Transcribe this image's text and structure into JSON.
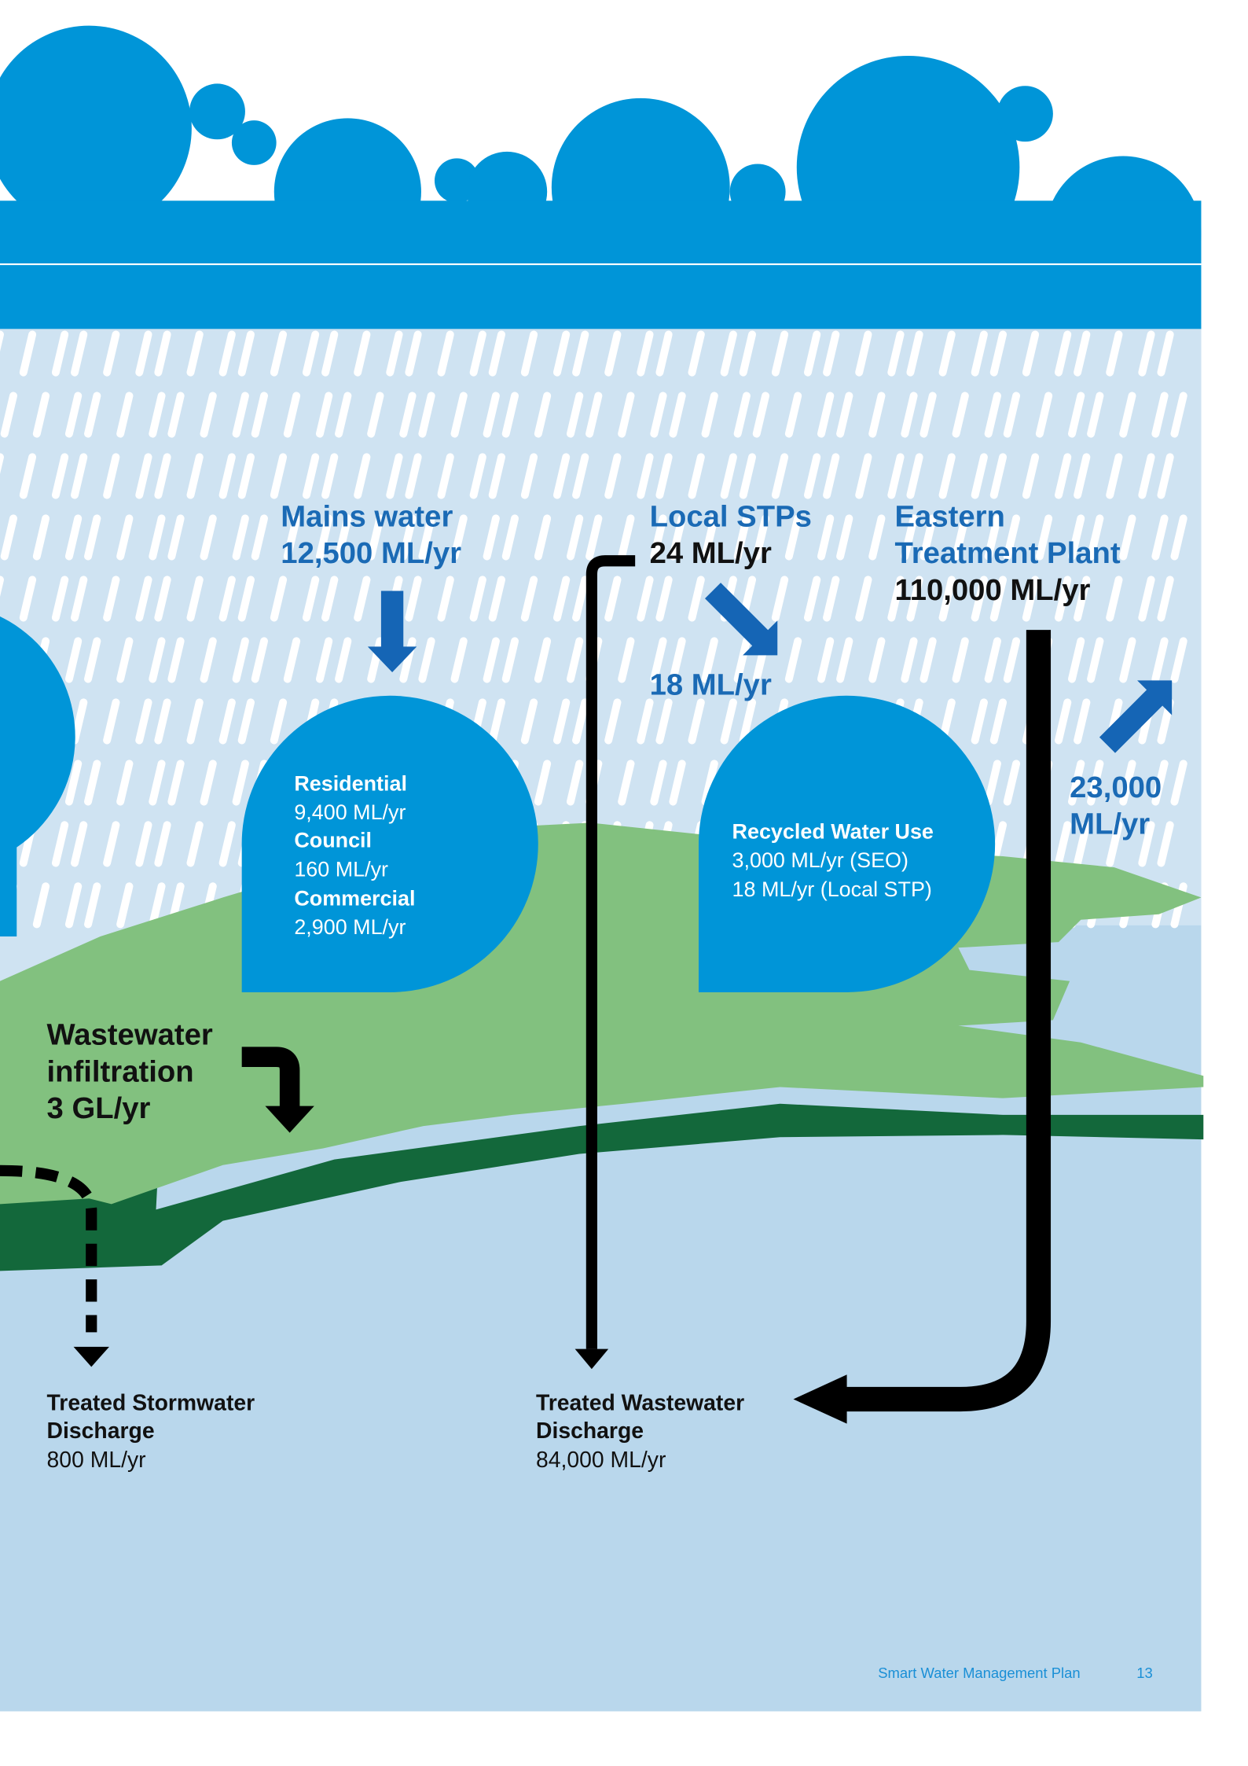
{
  "mains": {
    "title": "Mains water",
    "value": "12,500 ML/yr"
  },
  "local_stps": {
    "title": "Local STPs",
    "value": "24 ML/yr",
    "recycled": "18 ML/yr"
  },
  "eastern": {
    "title_lines": [
      "Eastern",
      "Treatment Plant"
    ],
    "value": "110,000 ML/yr",
    "outflow_lines": [
      "23,000",
      "ML/yr"
    ]
  },
  "demand": {
    "items": [
      {
        "label": "Residential",
        "value": "9,400 ML/yr"
      },
      {
        "label": "Council",
        "value": "160 ML/yr"
      },
      {
        "label": "Commercial",
        "value": "2,900 ML/yr"
      }
    ]
  },
  "recycled_use": {
    "title": "Recycled Water Use",
    "lines": [
      "3,000 ML/yr (SEO)",
      "18 ML/yr (Local STP)"
    ]
  },
  "infiltration": {
    "lines": [
      "Wastewater",
      "infiltration",
      "3 GL/yr"
    ]
  },
  "stormwater": {
    "title_lines": [
      "Treated Stormwater",
      "Discharge"
    ],
    "value": "800 ML/yr"
  },
  "wastewater": {
    "title_lines": [
      "Treated Wastewater",
      "Discharge"
    ],
    "value": "84,000 ML/yr"
  },
  "footer": {
    "title": "Smart Water Management Plan",
    "page": 13
  }
}
